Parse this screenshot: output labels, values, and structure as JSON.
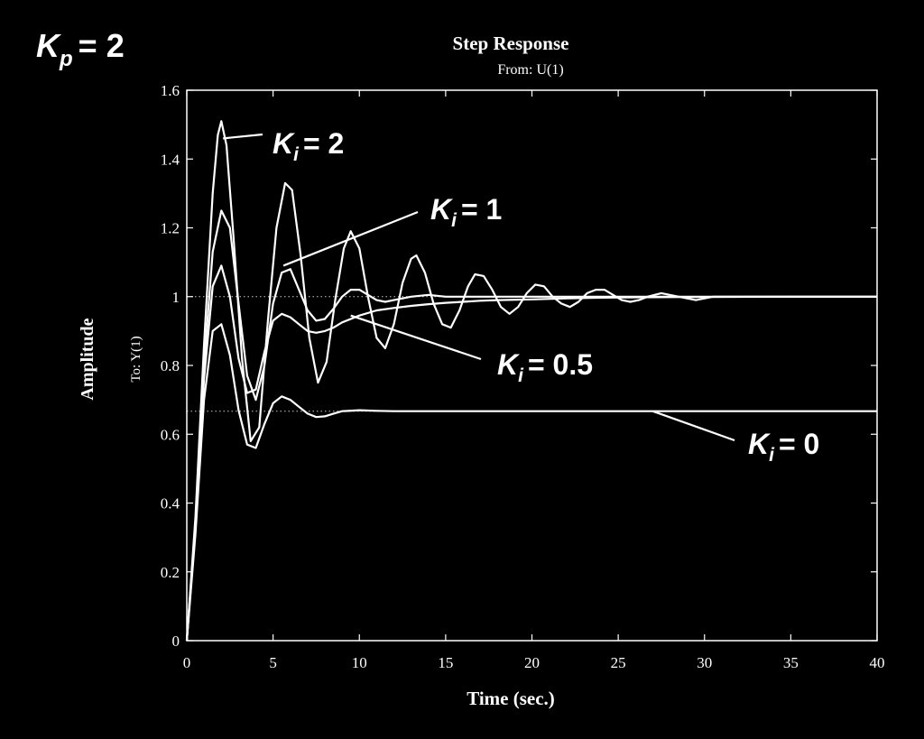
{
  "corner_label": {
    "symbol": "K",
    "sub": "p",
    "rest": "= 2"
  },
  "chart_data": {
    "type": "line",
    "title": "Step Response",
    "subtitle": "From: U(1)",
    "xlabel": "Time (sec.)",
    "ylabel": "Amplitude",
    "ylabel2": "To: Y(1)",
    "xlim": [
      0,
      40
    ],
    "ylim": [
      0,
      1.6
    ],
    "xticks": [
      0,
      5,
      10,
      15,
      20,
      25,
      30,
      35,
      40
    ],
    "xtick_labels": [
      "0",
      "5",
      "10",
      "15",
      "20",
      "25",
      "30",
      "35",
      "40"
    ],
    "yticks": [
      0,
      0.2,
      0.4,
      0.6,
      0.8,
      1.0,
      1.2,
      1.4,
      1.6
    ],
    "ytick_labels": [
      "0",
      "0.2",
      "0.4",
      "0.6",
      "0.8",
      "1",
      "1.2",
      "1.4",
      "1.6"
    ],
    "grid": false,
    "colors": {
      "background": "#000000",
      "line": "#ffffff"
    },
    "series": [
      {
        "name": "K_i = 2",
        "x": [
          0,
          0.5,
          1,
          1.5,
          1.8,
          2,
          2.3,
          2.7,
          3.2,
          3.7,
          4.2,
          4.7,
          5.2,
          5.7,
          6.1,
          6.6,
          7.1,
          7.6,
          8.1,
          8.6,
          9.1,
          9.5,
          10,
          10.5,
          11,
          11.5,
          12,
          12.5,
          13,
          13.3,
          13.8,
          14.3,
          14.8,
          15.3,
          15.8,
          16.3,
          16.7,
          17.2,
          17.7,
          18.2,
          18.7,
          19.2,
          19.7,
          20.2,
          20.7,
          21.2,
          21.7,
          22.2,
          22.7,
          23.2,
          23.7,
          24.2,
          24.7,
          25.2,
          25.7,
          26.2,
          26.7,
          27.5,
          28.5,
          29.5,
          30.5,
          32,
          34,
          36,
          38,
          40
        ],
        "y": [
          0,
          0.36,
          0.86,
          1.3,
          1.47,
          1.51,
          1.44,
          1.18,
          0.82,
          0.58,
          0.62,
          0.93,
          1.2,
          1.33,
          1.31,
          1.12,
          0.88,
          0.75,
          0.81,
          0.99,
          1.14,
          1.19,
          1.14,
          1.0,
          0.88,
          0.85,
          0.92,
          1.04,
          1.11,
          1.12,
          1.07,
          0.98,
          0.92,
          0.91,
          0.96,
          1.03,
          1.065,
          1.06,
          1.02,
          0.97,
          0.95,
          0.97,
          1.01,
          1.035,
          1.03,
          1.0,
          0.98,
          0.97,
          0.985,
          1.01,
          1.02,
          1.02,
          1.005,
          0.99,
          0.985,
          0.99,
          1.0,
          1.01,
          1.0,
          0.99,
          1.0,
          1.0,
          1.0,
          1.0,
          1.0,
          1.0
        ]
      },
      {
        "name": "K_i = 1",
        "x": [
          0,
          0.5,
          1,
          1.5,
          2,
          2.5,
          3,
          3.5,
          4,
          4.5,
          5,
          5.5,
          6,
          6.5,
          7,
          7.5,
          8,
          8.5,
          9,
          9.5,
          10,
          10.5,
          11,
          11.5,
          12,
          13,
          14,
          15,
          16,
          17,
          18,
          20,
          25,
          30,
          35,
          40
        ],
        "y": [
          0,
          0.34,
          0.8,
          1.13,
          1.25,
          1.2,
          0.98,
          0.77,
          0.7,
          0.8,
          0.98,
          1.07,
          1.08,
          1.02,
          0.96,
          0.93,
          0.935,
          0.965,
          1.0,
          1.02,
          1.02,
          1.005,
          0.99,
          0.985,
          0.99,
          1.0,
          1.005,
          1.0,
          1.0,
          1.0,
          1.0,
          1.0,
          1.0,
          1.0,
          1.0,
          1.0
        ]
      },
      {
        "name": "K_i = 0.5",
        "x": [
          0,
          0.5,
          1,
          1.5,
          2,
          2.5,
          3,
          3.5,
          4,
          4.5,
          5,
          5.5,
          6,
          6.5,
          7,
          7.5,
          8,
          8.5,
          9,
          10,
          11,
          12,
          13,
          14,
          15,
          16,
          17,
          18,
          20,
          22,
          24,
          26,
          30,
          35,
          40
        ],
        "y": [
          0,
          0.34,
          0.76,
          1.03,
          1.09,
          1.0,
          0.82,
          0.72,
          0.73,
          0.84,
          0.93,
          0.95,
          0.94,
          0.92,
          0.9,
          0.895,
          0.9,
          0.91,
          0.925,
          0.945,
          0.96,
          0.967,
          0.973,
          0.978,
          0.982,
          0.985,
          0.988,
          0.99,
          0.992,
          0.995,
          0.997,
          0.998,
          0.999,
          1.0,
          1.0
        ]
      },
      {
        "name": "K_i = 0",
        "x": [
          0,
          0.5,
          1,
          1.5,
          2,
          2.5,
          3,
          3.5,
          4,
          4.5,
          5,
          5.5,
          6,
          6.5,
          7,
          7.5,
          8,
          8.5,
          9,
          10,
          11,
          12,
          14,
          16,
          20,
          25,
          30,
          35,
          40
        ],
        "y": [
          0,
          0.31,
          0.7,
          0.9,
          0.92,
          0.83,
          0.67,
          0.57,
          0.56,
          0.63,
          0.69,
          0.71,
          0.7,
          0.68,
          0.66,
          0.65,
          0.652,
          0.66,
          0.667,
          0.67,
          0.668,
          0.667,
          0.667,
          0.667,
          0.667,
          0.667,
          0.667,
          0.667,
          0.667
        ]
      }
    ],
    "reference_lines": [
      1.0,
      0.667
    ],
    "annotations": [
      {
        "id": "ki2",
        "sym": "K",
        "sub": "i",
        "rest": "= 2",
        "point": [
          2.1,
          1.46
        ]
      },
      {
        "id": "ki1",
        "sym": "K",
        "sub": "i",
        "rest": "= 1",
        "point": [
          5.6,
          1.09
        ]
      },
      {
        "id": "ki05",
        "sym": "K",
        "sub": "i",
        "rest": "= 0.5",
        "point": [
          9.5,
          0.945
        ]
      },
      {
        "id": "ki0",
        "sym": "K",
        "sub": "i",
        "rest": "= 0",
        "point": [
          27,
          0.667
        ]
      }
    ]
  }
}
